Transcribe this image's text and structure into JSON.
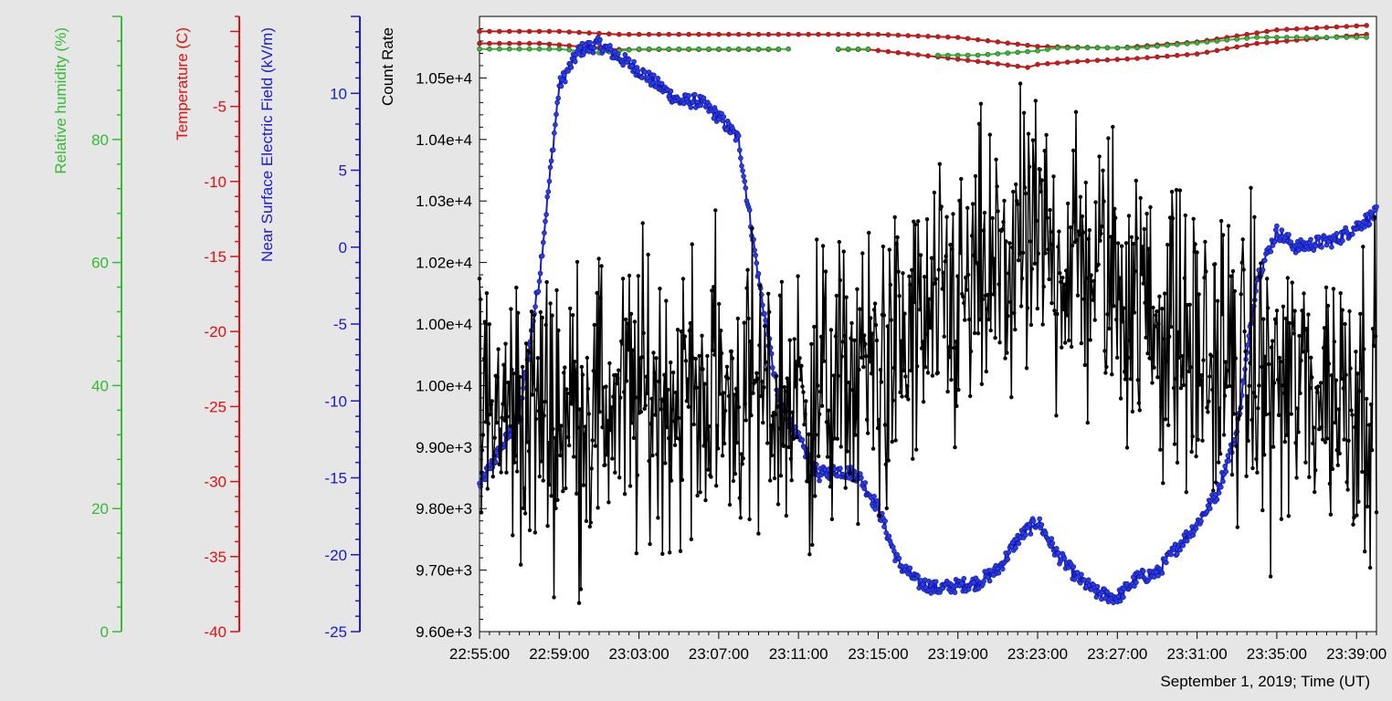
{
  "chart_data": {
    "type": "line",
    "xlabel": "September 1, 2019; Time (UT)",
    "x_range": [
      "22:55:00",
      "23:40:00"
    ],
    "x_ticks": [
      "22:55:00",
      "22:59:00",
      "23:03:00",
      "23:07:00",
      "23:11:00",
      "23:15:00",
      "23:19:00",
      "23:23:00",
      "23:27:00",
      "23:31:00",
      "23:35:00",
      "23:39:00"
    ],
    "axes": [
      {
        "id": "humidity",
        "label": "Relative humidity (%)",
        "color": "#33bb33",
        "range": [
          0,
          100
        ],
        "ticks": [
          "0",
          "20",
          "40",
          "60",
          "80"
        ]
      },
      {
        "id": "temperature",
        "label": "Temperature (C)",
        "color": "#e01010",
        "range": [
          -40,
          1
        ],
        "ticks": [
          "-40",
          "-35",
          "-30",
          "-25",
          "-20",
          "-15",
          "-10",
          "-5"
        ]
      },
      {
        "id": "efield",
        "label": "Near Surface Electric Field (kV/m)",
        "color": "#1a1acc",
        "range": [
          -25,
          15
        ],
        "ticks": [
          "-25",
          "-20",
          "-15",
          "-10",
          "-5",
          "0",
          "5",
          "10"
        ]
      },
      {
        "id": "count",
        "label": "Count Rate",
        "color": "#000000",
        "range": [
          9600,
          10600
        ],
        "ticks": [
          "9.60e+3",
          "9.70e+3",
          "9.80e+3",
          "9.90e+3",
          "1.00e+4",
          "1.00e+4",
          "1.02e+4",
          "1.03e+4",
          "1.04e+4",
          "1.05e+4"
        ]
      }
    ],
    "series": [
      {
        "axis": "temperature",
        "x": [
          "22:55:00",
          "22:59:00",
          "23:02:00",
          "23:06:00",
          "23:11:00",
          "23:15:00",
          "23:19:00",
          "23:23:00",
          "23:27:00",
          "23:31:00",
          "23:35:00",
          "23:39:30"
        ],
        "y": [
          0.0,
          0.0,
          -0.2,
          -0.2,
          -0.2,
          -0.2,
          -0.4,
          -1.0,
          -1.1,
          -0.7,
          0.1,
          0.4
        ],
        "gaps": [],
        "color": "#e01010"
      },
      {
        "axis": "temperature",
        "x": [
          "22:55:00",
          "22:58:00",
          "23:02:00",
          "23:06:00",
          "23:10:00",
          "23:10:30",
          "23:13:00",
          "23:14:30",
          "23:18:00",
          "23:20:00",
          "23:22:30",
          "23:23:00",
          "23:25:00",
          "23:28:00",
          "23:31:00",
          "23:34:00",
          "23:39:30"
        ],
        "y": [
          -0.8,
          -0.8,
          -1.2,
          -1.2,
          -1.2,
          null,
          -1.2,
          -1.2,
          -1.7,
          -2.0,
          -2.4,
          -2.2,
          -2.0,
          -1.8,
          -1.5,
          -0.8,
          -0.2
        ],
        "gaps": [
          5
        ],
        "color": "#e01010"
      },
      {
        "axis": "humidity",
        "x": [
          "22:55:00",
          "22:59:00",
          "23:01:00",
          "23:03:00",
          "23:06:00",
          "23:10:30",
          "23:11:00",
          "23:13:00",
          "23:14:30",
          "23:15:00",
          "23:18:00",
          "23:20:00",
          "23:23:00",
          "23:24:00",
          "23:28:00",
          "23:31:00",
          "23:34:00",
          "23:39:30"
        ],
        "y": [
          94.7,
          94.7,
          94.1,
          94.7,
          94.7,
          94.7,
          null,
          94.7,
          94.7,
          null,
          93.7,
          93.7,
          94.4,
          94.9,
          94.9,
          95.7,
          96.6,
          96.6
        ],
        "gaps": [
          6,
          9
        ],
        "color": "#33bb33"
      },
      {
        "axis": "efield",
        "x": [
          "22:55:00",
          "22:57:00",
          "22:58:00",
          "22:59:00",
          "23:00:00",
          "23:01:00",
          "23:03:00",
          "23:04:00",
          "23:05:00",
          "23:06:00",
          "23:07:00",
          "23:08:00",
          "23:09:00",
          "23:10:00",
          "23:11:00",
          "23:12:00",
          "23:13:00",
          "23:14:00",
          "23:15:00",
          "23:16:00",
          "23:17:00",
          "23:18:00",
          "23:19:00",
          "23:20:00",
          "23:21:00",
          "23:22:00",
          "23:23:00",
          "23:24:00",
          "23:25:00",
          "23:26:00",
          "23:27:00",
          "23:28:00",
          "23:29:00",
          "23:30:00",
          "23:31:00",
          "23:32:00",
          "23:33:00",
          "23:34:00",
          "23:35:00",
          "23:36:00",
          "23:38:00",
          "23:40:00"
        ],
        "y": [
          -15.5,
          -11.0,
          -2.0,
          10.5,
          12.8,
          13.2,
          11.5,
          10.5,
          9.5,
          9.5,
          8.5,
          7.0,
          -2.0,
          -10.0,
          -12.5,
          -14.8,
          -14.5,
          -14.8,
          -17.0,
          -20.5,
          -21.8,
          -22.2,
          -22.0,
          -21.8,
          -21.0,
          -19.0,
          -17.8,
          -20.0,
          -21.5,
          -22.5,
          -22.8,
          -21.5,
          -21.2,
          -19.5,
          -18.0,
          -16.0,
          -12.0,
          -2.0,
          1.0,
          0.0,
          0.5,
          2.2
        ],
        "gaps": [],
        "color": "#1a1acc"
      },
      {
        "axis": "count",
        "x": [
          "22:55:00",
          "22:59:00",
          "23:03:00",
          "23:07:00",
          "23:11:00",
          "23:15:00",
          "23:19:00",
          "23:23:00",
          "23:27:00",
          "23:31:00",
          "23:35:00",
          "23:40:00"
        ],
        "y": [
          9950,
          9960,
          9980,
          9990,
          9970,
          10030,
          10130,
          10230,
          10170,
          10050,
          10000,
          9990
        ],
        "gaps": [],
        "noise": 180,
        "color": "#000000"
      }
    ]
  }
}
